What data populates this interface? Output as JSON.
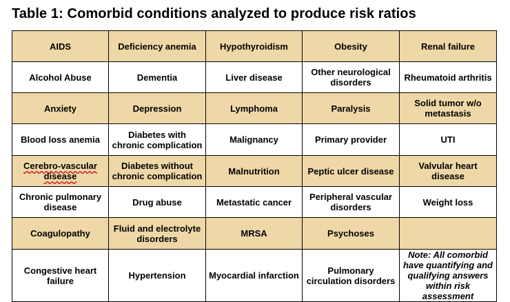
{
  "title": "Table 1: Comorbid conditions analyzed to produce risk ratios",
  "rows": [
    [
      "AIDS",
      "Deficiency anemia",
      "Hypothyroidism",
      "Obesity",
      "Renal failure"
    ],
    [
      "Alcohol Abuse",
      "Dementia",
      "Liver disease",
      "Other neurological disorders",
      "Rheumatoid arthritis"
    ],
    [
      "Anxiety",
      "Depression",
      "Lymphoma",
      "Paralysis",
      "Solid tumor w/o metastasis"
    ],
    [
      "Blood loss anemia",
      "Diabetes with chronic complication",
      "Malignancy",
      "Primary provider",
      "UTI"
    ],
    [
      "Cerebro-vascular disease",
      "Diabetes without chronic complication",
      "Malnutrition",
      "Peptic ulcer disease",
      "Valvular heart disease"
    ],
    [
      "Chronic pulmonary disease",
      "Drug abuse",
      "Metastatic cancer",
      "Peripheral vascular disorders",
      "Weight loss"
    ],
    [
      "Coagulopathy",
      "Fluid and electrolyte disorders",
      "MRSA",
      "Psychoses",
      ""
    ],
    [
      "Congestive heart failure",
      "Hypertension",
      "Myocardial infarction",
      "Pulmonary circulation disorders",
      "Note: All comorbid have quantifying and qualifying answers within risk assessment"
    ]
  ],
  "colors": {
    "tan_row": "#efd8a7",
    "white_row": "#ffffff",
    "spell_underline": "#d0021b"
  }
}
